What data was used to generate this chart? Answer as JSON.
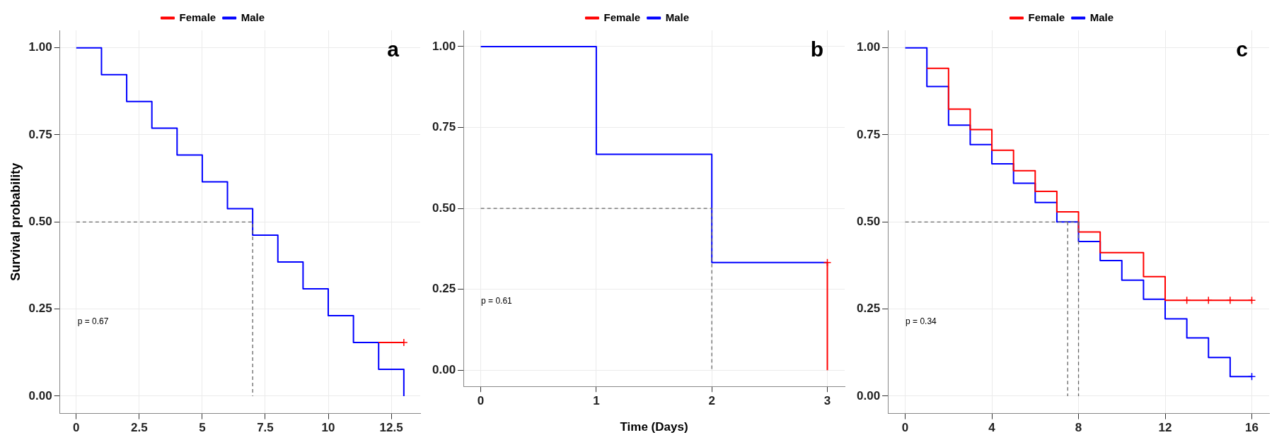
{
  "chart_data": [
    {
      "type": "step",
      "ylabel": "Survival probability",
      "annotations": [
        "a",
        "p = 0.67"
      ],
      "legend": "top",
      "grid": true,
      "xlim": [
        -0.65,
        13.65
      ],
      "xticks": [
        0,
        2.5,
        5,
        7.5,
        10,
        12.5
      ],
      "ylim": [
        -0.05,
        1.05
      ],
      "yticks": [
        {
          "value": 0,
          "label": "0.00"
        },
        {
          "value": 0.25,
          "label": "0.25"
        },
        {
          "value": 0.5,
          "label": "0.50"
        },
        {
          "value": 0.75,
          "label": "0.75"
        },
        {
          "value": 1,
          "label": "1.00"
        }
      ],
      "series": [
        {
          "type": "line",
          "line_style": "dashed",
          "color": "#666666",
          "x": [
            0,
            7,
            7
          ],
          "values": [
            0.5,
            0.5,
            0
          ]
        },
        {
          "type": "step",
          "name": "Female",
          "color": "#ff0000",
          "x": [
            12,
            13
          ],
          "values": [
            0.154,
            0.154
          ]
        },
        {
          "type": "scatter",
          "marker": "cross",
          "color": "#ff0000",
          "x": [
            13
          ],
          "values": [
            0.154
          ]
        },
        {
          "type": "step",
          "name": "Male",
          "color": "#0000ff",
          "x": [
            0,
            1,
            2,
            3,
            4,
            5,
            6,
            7,
            8,
            9,
            10,
            11,
            12,
            13
          ],
          "values": [
            1,
            0.923,
            0.846,
            0.769,
            0.692,
            0.615,
            0.538,
            0.462,
            0.385,
            0.308,
            0.231,
            0.154,
            0.077,
            0
          ]
        }
      ]
    },
    {
      "type": "step",
      "xlabel": "Time (Days)",
      "annotations": [
        "b",
        "p = 0.61"
      ],
      "legend": "top",
      "grid": true,
      "xlim": [
        -0.15,
        3.15
      ],
      "xticks": [
        0,
        1,
        2,
        3
      ],
      "ylim": [
        -0.05,
        1.05
      ],
      "yticks": [
        {
          "value": 0,
          "label": "0.00"
        },
        {
          "value": 0.25,
          "label": "0.25"
        },
        {
          "value": 0.5,
          "label": "0.50"
        },
        {
          "value": 0.75,
          "label": "0.75"
        },
        {
          "value": 1,
          "label": "1.00"
        }
      ],
      "series": [
        {
          "type": "line",
          "line_style": "dashed",
          "color": "#666666",
          "x": [
            0,
            2,
            2
          ],
          "values": [
            0.5,
            0.5,
            0
          ]
        },
        {
          "type": "step",
          "name": "Female",
          "color": "#ff0000",
          "x": [
            3,
            3
          ],
          "values": [
            0.333,
            0
          ]
        },
        {
          "type": "scatter",
          "marker": "cross",
          "color": "#ff0000",
          "x": [
            3
          ],
          "values": [
            0.333
          ]
        },
        {
          "type": "step",
          "name": "Male",
          "color": "#0000ff",
          "x": [
            0,
            1,
            2,
            3
          ],
          "values": [
            1,
            0.667,
            0.333,
            0.333
          ]
        }
      ]
    },
    {
      "type": "step",
      "annotations": [
        "c",
        "p = 0.34"
      ],
      "legend": "top",
      "grid": true,
      "xlim": [
        -0.8,
        16.8
      ],
      "xticks": [
        0,
        4,
        8,
        12,
        16
      ],
      "ylim": [
        -0.05,
        1.05
      ],
      "yticks": [
        {
          "value": 0,
          "label": "0.00"
        },
        {
          "value": 0.25,
          "label": "0.25"
        },
        {
          "value": 0.5,
          "label": "0.50"
        },
        {
          "value": 0.75,
          "label": "0.75"
        },
        {
          "value": 1,
          "label": "1.00"
        }
      ],
      "series": [
        {
          "type": "line",
          "line_style": "dashed",
          "color": "#666666",
          "x": [
            0,
            8
          ],
          "values": [
            0.5,
            0.5
          ]
        },
        {
          "type": "line",
          "line_style": "dashed",
          "color": "#666666",
          "x": [
            7.5,
            7.5
          ],
          "values": [
            0.5,
            0
          ]
        },
        {
          "type": "line",
          "line_style": "dashed",
          "color": "#666666",
          "x": [
            8,
            8
          ],
          "values": [
            0.5,
            0
          ]
        },
        {
          "type": "step",
          "name": "Female",
          "color": "#ff0000",
          "x": [
            1,
            2,
            3,
            4,
            5,
            6,
            7,
            8,
            9,
            10,
            11,
            12,
            16
          ],
          "values": [
            0.941,
            0.824,
            0.765,
            0.706,
            0.647,
            0.588,
            0.529,
            0.471,
            0.412,
            0.412,
            0.343,
            0.275,
            0.275
          ]
        },
        {
          "type": "scatter",
          "marker": "cross",
          "color": "#ff0000",
          "x": [
            13,
            14,
            15,
            16
          ],
          "values": [
            0.275,
            0.275,
            0.275,
            0.275
          ]
        },
        {
          "type": "step",
          "name": "Male",
          "color": "#0000ff",
          "x": [
            0,
            1,
            2,
            3,
            4,
            5,
            6,
            7,
            8,
            9,
            10,
            11,
            12,
            13,
            14,
            15,
            16
          ],
          "values": [
            1,
            0.889,
            0.778,
            0.722,
            0.667,
            0.611,
            0.556,
            0.5,
            0.444,
            0.389,
            0.333,
            0.278,
            0.222,
            0.167,
            0.111,
            0.056,
            0.056
          ]
        },
        {
          "type": "scatter",
          "marker": "cross",
          "color": "#0000ff",
          "x": [
            16
          ],
          "values": [
            0.056
          ]
        }
      ]
    }
  ]
}
